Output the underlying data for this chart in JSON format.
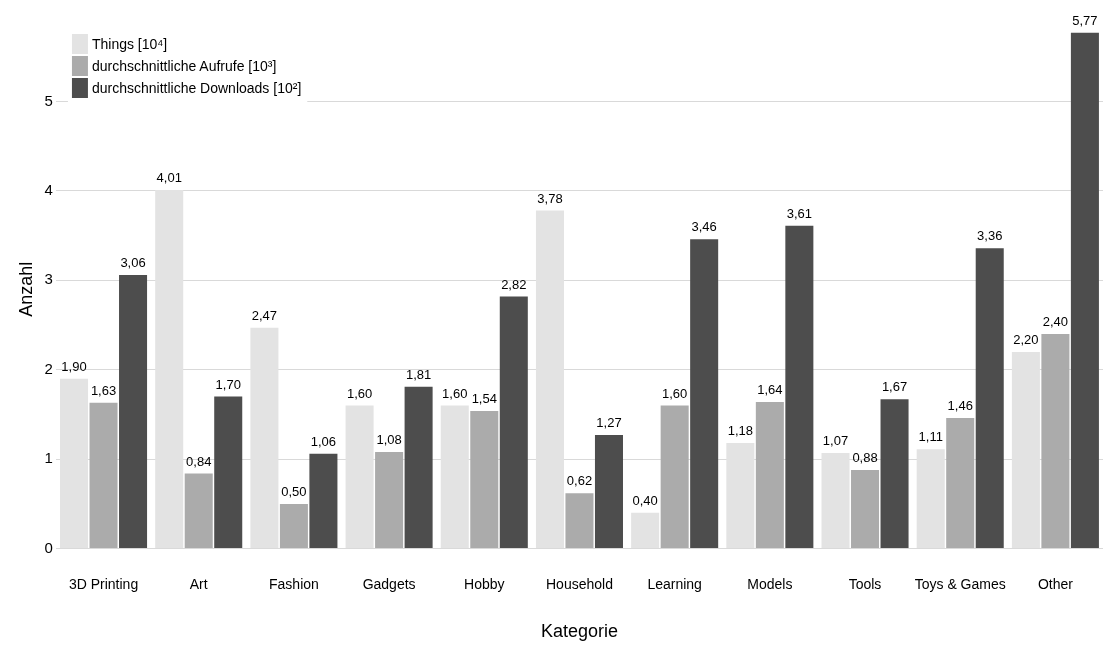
{
  "chart_data": {
    "type": "bar",
    "xlabel": "Kategorie",
    "ylabel": "Anzahl",
    "categories": [
      "3D Printing",
      "Art",
      "Fashion",
      "Gadgets",
      "Hobby",
      "Household",
      "Learning",
      "Models",
      "Tools",
      "Toys & Games",
      "Other"
    ],
    "series": [
      {
        "name": "Things [10⁴]",
        "color": "#e3e3e3",
        "values": [
          1.9,
          4.01,
          2.47,
          1.6,
          1.6,
          3.78,
          0.4,
          1.18,
          1.07,
          1.11,
          2.2
        ],
        "value_labels": [
          "1,90",
          "4,01",
          "2,47",
          "1,60",
          "1,60",
          "3,78",
          "0,40",
          "1,18",
          "1,07",
          "1,11",
          "2,20"
        ]
      },
      {
        "name": "durchschnittliche Aufrufe [10³]",
        "color": "#ababab",
        "values": [
          1.63,
          0.84,
          0.5,
          1.08,
          1.54,
          0.62,
          1.6,
          1.64,
          0.88,
          1.46,
          2.4
        ],
        "value_labels": [
          "1,63",
          "0,84",
          "0,50",
          "1,08",
          "1,54",
          "0,62",
          "1,60",
          "1,64",
          "0,88",
          "1,46",
          "2,40"
        ]
      },
      {
        "name": "durchschnittliche Downloads [10²]",
        "color": "#4d4d4d",
        "values": [
          3.06,
          1.7,
          1.06,
          1.81,
          2.82,
          1.27,
          3.46,
          3.61,
          1.67,
          3.36,
          5.77
        ],
        "value_labels": [
          "3,06",
          "1,70",
          "1,06",
          "1,81",
          "2,82",
          "1,27",
          "3,46",
          "3,61",
          "1,67",
          "3,36",
          "5,77"
        ]
      }
    ],
    "ylim": [
      0,
      5.8
    ],
    "yticks": [
      0,
      1,
      2,
      3,
      4,
      5
    ],
    "grid": "y",
    "legend": "top left"
  }
}
